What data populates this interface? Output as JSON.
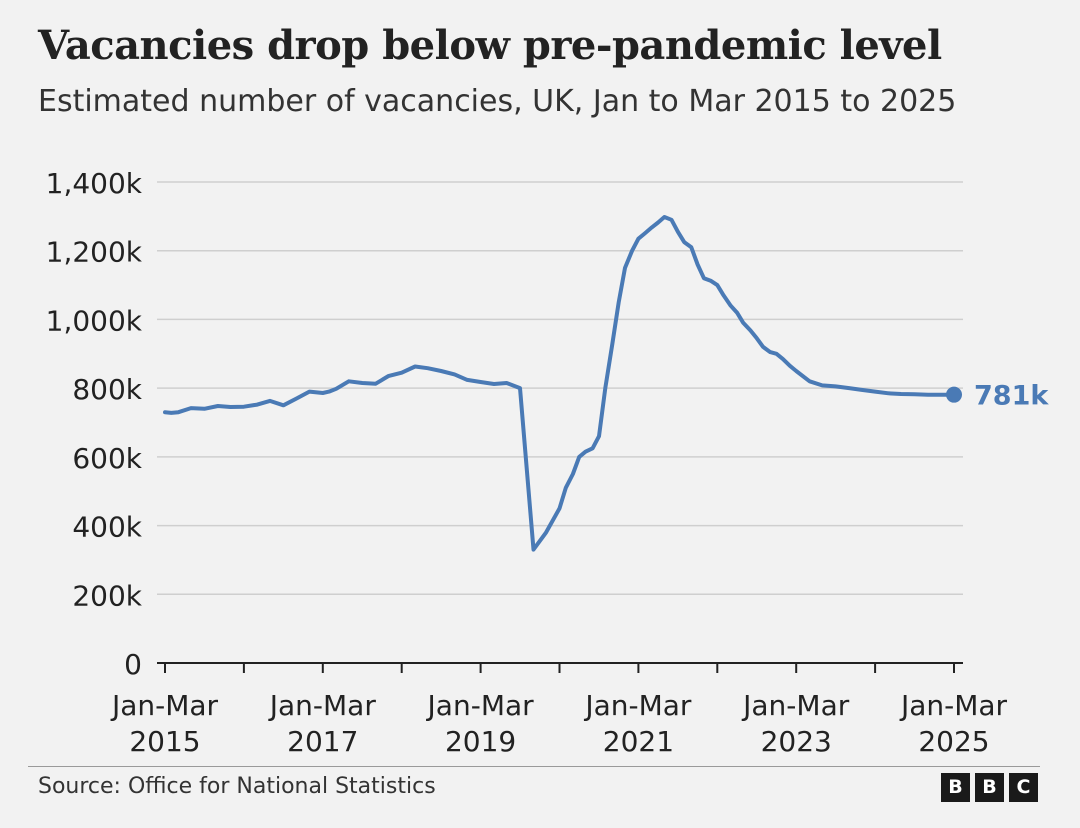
{
  "title": "Vacancies drop below pre-pandemic level",
  "subtitle": "Estimated number of vacancies, UK, Jan to Mar 2015 to 2025",
  "source": "Source: Office for National Statistics",
  "logo": [
    "B",
    "B",
    "C"
  ],
  "colors": {
    "line": "#4a7ab5",
    "grid": "#cfcfcf",
    "axis": "#222222",
    "text": "#222222",
    "background": "#f2f2f2"
  },
  "chart_data": {
    "type": "line",
    "title": "Vacancies drop below pre-pandemic level",
    "subtitle": "Estimated number of vacancies, UK, Jan to Mar 2015 to 2025",
    "xlabel": "",
    "ylabel": "",
    "ylim": [
      0,
      1400000
    ],
    "y_ticks": [
      0,
      200000,
      400000,
      600000,
      800000,
      1000000,
      1200000,
      1400000
    ],
    "y_tick_labels": [
      "0",
      "200k",
      "400k",
      "600k",
      "800k",
      "1,000k",
      "1,200k",
      "1,400k"
    ],
    "xlim": [
      2015,
      2025
    ],
    "x_ticks": [
      2015,
      2016,
      2017,
      2018,
      2019,
      2020,
      2021,
      2022,
      2023,
      2024,
      2025
    ],
    "x_tick_labels": [
      {
        "x": 2015,
        "line1": "Jan-Mar",
        "line2": "2015"
      },
      {
        "x": 2017,
        "line1": "Jan-Mar",
        "line2": "2017"
      },
      {
        "x": 2019,
        "line1": "Jan-Mar",
        "line2": "2019"
      },
      {
        "x": 2021,
        "line1": "Jan-Mar",
        "line2": "2021"
      },
      {
        "x": 2023,
        "line1": "Jan-Mar",
        "line2": "2023"
      },
      {
        "x": 2025,
        "line1": "Jan-Mar",
        "line2": "2025"
      }
    ],
    "grid": true,
    "series": [
      {
        "x": [
          2015.0,
          2015.08,
          2015.17,
          2015.33,
          2015.5,
          2015.67,
          2015.83,
          2016.0,
          2016.17,
          2016.33,
          2016.5,
          2016.67,
          2016.83,
          2017.0,
          2017.08,
          2017.17,
          2017.33,
          2017.5,
          2017.67,
          2017.83,
          2018.0,
          2018.17,
          2018.33,
          2018.5,
          2018.67,
          2018.83,
          2019.0,
          2019.17,
          2019.33,
          2019.5,
          2019.67,
          2019.83,
          2020.0,
          2020.08,
          2020.17,
          2020.25,
          2020.33,
          2020.42,
          2020.5,
          2020.58,
          2020.67,
          2020.75,
          2020.83,
          2020.92,
          2021.0,
          2021.08,
          2021.17,
          2021.25,
          2021.33,
          2021.42,
          2021.5,
          2021.58,
          2021.67,
          2021.75,
          2021.83,
          2021.92,
          2022.0,
          2022.08,
          2022.17,
          2022.25,
          2022.33,
          2022.42,
          2022.5,
          2022.58,
          2022.67,
          2022.75,
          2022.83,
          2022.92,
          2023.0,
          2023.17,
          2023.33,
          2023.5,
          2023.67,
          2023.83,
          2024.0,
          2024.17,
          2024.33,
          2024.5,
          2024.67,
          2024.83,
          2025.0
        ],
        "y": [
          730000,
          728000,
          730000,
          742000,
          740000,
          748000,
          745000,
          746000,
          752000,
          763000,
          750000,
          770000,
          790000,
          786000,
          790000,
          798000,
          820000,
          815000,
          813000,
          835000,
          845000,
          863000,
          858000,
          850000,
          840000,
          824000,
          818000,
          812000,
          815000,
          800000,
          330000,
          380000,
          450000,
          510000,
          550000,
          600000,
          615000,
          625000,
          660000,
          800000,
          930000,
          1050000,
          1150000,
          1200000,
          1235000,
          1250000,
          1268000,
          1282000,
          1298000,
          1290000,
          1255000,
          1225000,
          1210000,
          1160000,
          1120000,
          1112000,
          1100000,
          1070000,
          1040000,
          1020000,
          990000,
          968000,
          945000,
          920000,
          905000,
          900000,
          885000,
          865000,
          850000,
          820000,
          808000,
          805000,
          800000,
          795000,
          790000,
          785000,
          783000,
          782000,
          781000,
          781000,
          781000
        ]
      }
    ],
    "annotation": {
      "x": 2025.0,
      "y": 781000,
      "label": "781k"
    }
  }
}
